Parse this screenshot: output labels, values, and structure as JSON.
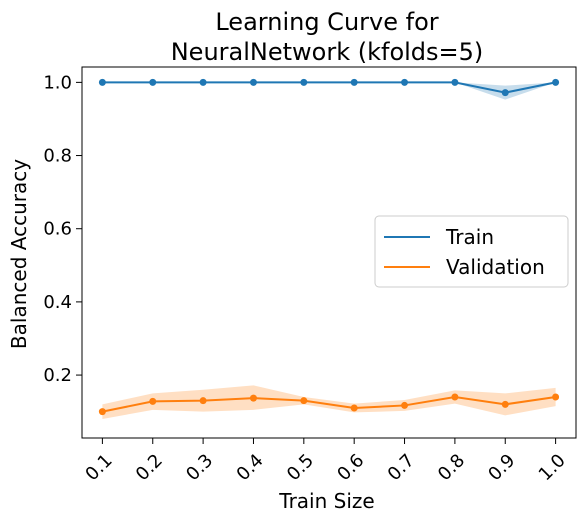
{
  "chart_data": {
    "type": "line",
    "title_lines": [
      "Learning Curve for",
      "NeuralNetwork (kfolds=5)"
    ],
    "xlabel": "Train Size",
    "ylabel": "Balanced Accuracy",
    "x": [
      0.1,
      0.2,
      0.3,
      0.4,
      0.5,
      0.6,
      0.7,
      0.8,
      0.9,
      1.0
    ],
    "x_tick_labels": [
      "0.1",
      "0.2",
      "0.3",
      "0.4",
      "0.5",
      "0.6",
      "0.7",
      "0.8",
      "0.9",
      "1.0"
    ],
    "y_ticks": [
      0.2,
      0.4,
      0.6,
      0.8,
      1.0
    ],
    "y_tick_labels": [
      "0.2",
      "0.4",
      "0.6",
      "0.8",
      "1.0"
    ],
    "ylim": [
      0.028,
      1.042
    ],
    "grid": false,
    "legend_position": "center-right",
    "series": [
      {
        "name": "Train",
        "color": "#1f77b4",
        "values": [
          1.0,
          1.0,
          1.0,
          1.0,
          1.0,
          1.0,
          1.0,
          1.0,
          0.972,
          1.0
        ],
        "lower": [
          1.0,
          1.0,
          1.0,
          1.0,
          1.0,
          1.0,
          1.0,
          1.0,
          0.953,
          1.0
        ],
        "upper": [
          1.0,
          1.0,
          1.0,
          1.0,
          1.0,
          1.0,
          1.0,
          1.0,
          0.991,
          1.0
        ]
      },
      {
        "name": "Validation",
        "color": "#ff7f0e",
        "values": [
          0.1,
          0.128,
          0.13,
          0.137,
          0.13,
          0.11,
          0.117,
          0.14,
          0.12,
          0.14
        ],
        "lower": [
          0.08,
          0.105,
          0.1,
          0.105,
          0.12,
          0.098,
          0.102,
          0.122,
          0.09,
          0.115
        ],
        "upper": [
          0.12,
          0.15,
          0.16,
          0.172,
          0.14,
          0.122,
          0.132,
          0.158,
          0.15,
          0.165
        ]
      }
    ]
  }
}
